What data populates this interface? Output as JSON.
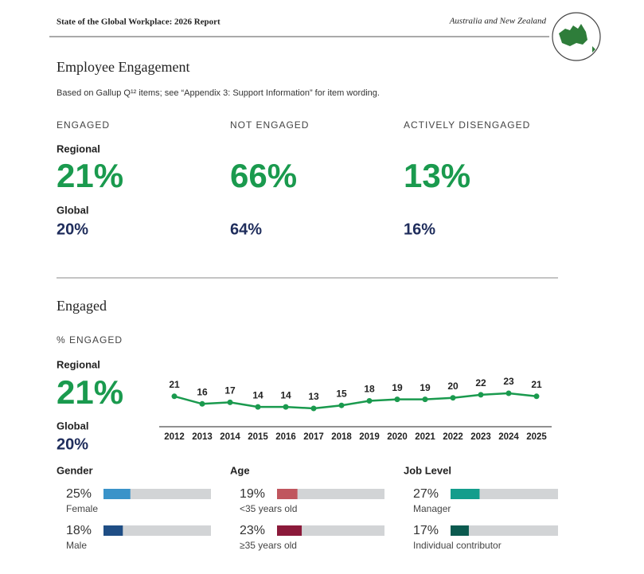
{
  "header": {
    "title": "State of the Global Workplace: 2026 Report",
    "region": "Australia and New Zealand"
  },
  "engagement": {
    "title": "Employee Engagement",
    "note": "Based on Gallup Q¹² items; see “Appendix 3: Support Information” for item wording.",
    "columns": [
      {
        "label": "ENGAGED",
        "regional_label": "Regional",
        "regional": "21%",
        "global_label": "Global",
        "global": "20%"
      },
      {
        "label": "NOT ENGAGED",
        "regional": "66%",
        "global": "64%"
      },
      {
        "label": "ACTIVELY DISENGAGED",
        "regional": "13%",
        "global": "16%"
      }
    ]
  },
  "engaged": {
    "title": "Engaged",
    "subtitle": "% ENGAGED",
    "regional_label": "Regional",
    "regional": "21%",
    "global_label": "Global",
    "global": "20%",
    "chart_data": {
      "type": "line",
      "color": "#1a9a4e",
      "x": [
        2012,
        2013,
        2014,
        2015,
        2016,
        2017,
        2018,
        2019,
        2020,
        2021,
        2022,
        2023,
        2024,
        2025
      ],
      "values": [
        21,
        16,
        17,
        14,
        14,
        13,
        15,
        18,
        19,
        19,
        20,
        22,
        23,
        21
      ]
    },
    "breakdowns": [
      {
        "title": "Gender",
        "items": [
          {
            "value": 25,
            "label": "25%",
            "name": "Female",
            "color": "#3a93c9"
          },
          {
            "value": 18,
            "label": "18%",
            "name": "Male",
            "color": "#1f4e85"
          }
        ]
      },
      {
        "title": "Age",
        "items": [
          {
            "value": 19,
            "label": "19%",
            "name": "<35 years old",
            "color": "#c0565e"
          },
          {
            "value": 23,
            "label": "23%",
            "name": "≥35 years old",
            "color": "#8b1a3a"
          }
        ]
      },
      {
        "title": "Job Level",
        "items": [
          {
            "value": 27,
            "label": "27%",
            "name": "Manager",
            "color": "#139d8c"
          },
          {
            "value": 17,
            "label": "17%",
            "name": "Individual contributor",
            "color": "#0b5a4f"
          }
        ]
      }
    ]
  }
}
